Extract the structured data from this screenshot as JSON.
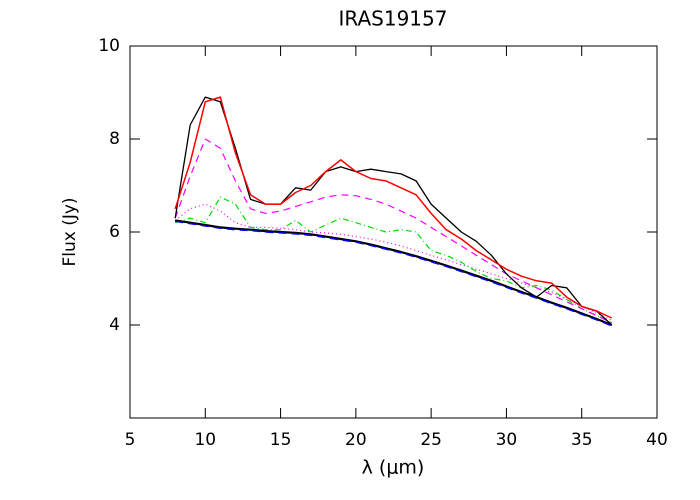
{
  "chart_data": {
    "type": "line",
    "title": "IRAS19157",
    "xlabel": "λ (μm)",
    "ylabel": "Flux (Jy)",
    "xlim": [
      5,
      40
    ],
    "xticks": [
      5,
      10,
      15,
      20,
      25,
      30,
      35,
      40
    ],
    "ylim": [
      2,
      10
    ],
    "yticks": [
      4,
      6,
      8,
      10
    ],
    "x": [
      8,
      9,
      10,
      11,
      12,
      13,
      14,
      15,
      16,
      17,
      18,
      19,
      20,
      21,
      22,
      23,
      24,
      25,
      26,
      27,
      28,
      29,
      30,
      31,
      32,
      33,
      34,
      35,
      36,
      37
    ],
    "series": [
      {
        "color": "#ff00ff",
        "dash": "1 3",
        "width": 1.2,
        "values": [
          6.25,
          6.5,
          6.6,
          6.45,
          6.2,
          6.1,
          6.1,
          6.08,
          6.05,
          6.0,
          5.98,
          5.95,
          5.9,
          5.85,
          5.78,
          5.7,
          5.6,
          5.5,
          5.4,
          5.3,
          5.2,
          5.1,
          5.0,
          4.9,
          4.8,
          4.7,
          4.55,
          4.4,
          4.25,
          4.1
        ]
      },
      {
        "color": "#00dd00",
        "dash": "6 3 1 3",
        "width": 1.2,
        "values": [
          6.2,
          6.3,
          6.2,
          6.75,
          6.6,
          6.1,
          6.05,
          6.05,
          6.25,
          6.0,
          6.15,
          6.3,
          6.2,
          6.1,
          6.0,
          6.05,
          6.0,
          5.6,
          5.5,
          5.35,
          5.15,
          5.0,
          4.95,
          4.8,
          4.85,
          4.75,
          4.55,
          4.35,
          4.2,
          4.05
        ]
      },
      {
        "color": "#ff00ff",
        "dash": "7 5",
        "width": 1.2,
        "values": [
          6.3,
          7.2,
          8.0,
          7.8,
          7.1,
          6.5,
          6.4,
          6.45,
          6.55,
          6.65,
          6.75,
          6.8,
          6.78,
          6.7,
          6.6,
          6.45,
          6.3,
          6.1,
          5.9,
          5.7,
          5.5,
          5.3,
          5.1,
          4.95,
          4.8,
          4.65,
          4.5,
          4.35,
          4.2,
          4.05
        ]
      },
      {
        "color": "#000000",
        "dash": "none",
        "width": 2.2,
        "values": [
          6.25,
          6.2,
          6.15,
          6.1,
          6.07,
          6.05,
          6.02,
          6.0,
          5.98,
          5.95,
          5.9,
          5.85,
          5.8,
          5.73,
          5.65,
          5.57,
          5.48,
          5.38,
          5.28,
          5.17,
          5.06,
          4.95,
          4.83,
          4.71,
          4.6,
          4.48,
          4.37,
          4.25,
          4.13,
          4.0
        ]
      },
      {
        "color": "#0000ff",
        "dash": "8 5",
        "width": 1.5,
        "values": [
          6.23,
          6.18,
          6.13,
          6.08,
          6.05,
          6.03,
          6.0,
          5.98,
          5.96,
          5.93,
          5.88,
          5.83,
          5.78,
          5.71,
          5.63,
          5.55,
          5.46,
          5.36,
          5.26,
          5.15,
          5.04,
          4.93,
          4.81,
          4.69,
          4.58,
          4.46,
          4.35,
          4.23,
          4.11,
          3.98
        ]
      },
      {
        "color": "#000000",
        "dash": "none",
        "width": 1.3,
        "values": [
          6.3,
          8.3,
          8.9,
          8.8,
          7.8,
          6.7,
          6.6,
          6.6,
          6.95,
          6.9,
          7.3,
          7.4,
          7.3,
          7.35,
          7.3,
          7.25,
          7.1,
          6.6,
          6.3,
          6.0,
          5.8,
          5.5,
          5.1,
          4.8,
          4.6,
          4.85,
          4.8,
          4.4,
          4.3,
          4.0
        ]
      },
      {
        "color": "#ff0000",
        "dash": "none",
        "width": 1.5,
        "values": [
          6.5,
          7.5,
          8.8,
          8.9,
          7.7,
          6.8,
          6.6,
          6.6,
          6.85,
          7.0,
          7.3,
          7.55,
          7.3,
          7.15,
          7.1,
          6.95,
          6.8,
          6.4,
          6.05,
          5.85,
          5.6,
          5.4,
          5.2,
          5.05,
          4.95,
          4.9,
          4.6,
          4.4,
          4.3,
          4.15
        ]
      }
    ]
  }
}
